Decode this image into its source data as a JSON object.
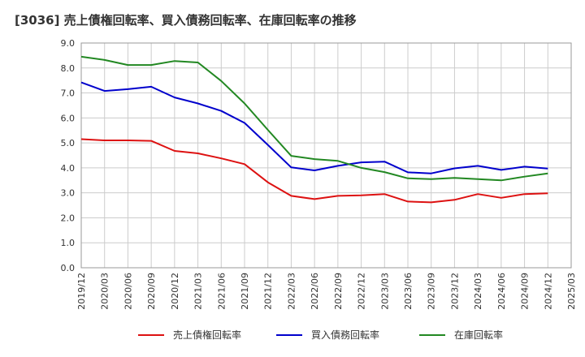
{
  "chart_data": {
    "type": "line",
    "title": "[3036]  売上債権回転率、買入債務回転率、在庫回転率の推移",
    "xlabel": "",
    "ylabel": "",
    "ylim": [
      0,
      9
    ],
    "y_ticks": [
      "0.0",
      "1.0",
      "2.0",
      "3.0",
      "4.0",
      "5.0",
      "6.0",
      "7.0",
      "8.0",
      "9.0"
    ],
    "x_ticks": [
      "2019/12",
      "2020/03",
      "2020/06",
      "2020/09",
      "2020/12",
      "2021/03",
      "2021/06",
      "2021/09",
      "2021/12",
      "2022/03",
      "2022/06",
      "2022/09",
      "2022/12",
      "2023/03",
      "2023/06",
      "2023/09",
      "2023/12",
      "2024/03",
      "2024/06",
      "2024/09",
      "2024/12",
      "2025/03"
    ],
    "categories": [
      "2019/12",
      "2020/03",
      "2020/06",
      "2020/09",
      "2020/12",
      "2021/03",
      "2021/06",
      "2021/09",
      "2021/12",
      "2022/03",
      "2022/06",
      "2022/09",
      "2022/12",
      "2023/03",
      "2023/06",
      "2023/09",
      "2023/12",
      "2024/03",
      "2024/06",
      "2024/09",
      "2024/12"
    ],
    "grid": true,
    "legend_position": "bottom",
    "series": [
      {
        "name": "売上債権回転率",
        "color": "#dd1111",
        "values": [
          5.15,
          5.1,
          5.1,
          5.08,
          4.68,
          4.58,
          4.38,
          4.15,
          3.42,
          2.88,
          2.75,
          2.88,
          2.9,
          2.95,
          2.65,
          2.62,
          2.72,
          2.95,
          2.8,
          2.95,
          2.98
        ]
      },
      {
        "name": "買入債務回転率",
        "color": "#0000cc",
        "values": [
          7.42,
          7.08,
          7.15,
          7.25,
          6.82,
          6.58,
          6.28,
          5.8,
          4.92,
          4.02,
          3.9,
          4.08,
          4.22,
          4.25,
          3.82,
          3.78,
          3.98,
          4.08,
          3.92,
          4.05,
          3.97
        ]
      },
      {
        "name": "在庫回転率",
        "color": "#228822",
        "values": [
          8.45,
          8.32,
          8.12,
          8.12,
          8.28,
          8.22,
          7.48,
          6.58,
          5.52,
          4.48,
          4.35,
          4.28,
          4.0,
          3.83,
          3.58,
          3.55,
          3.6,
          3.55,
          3.5,
          3.65,
          3.78
        ]
      }
    ]
  }
}
